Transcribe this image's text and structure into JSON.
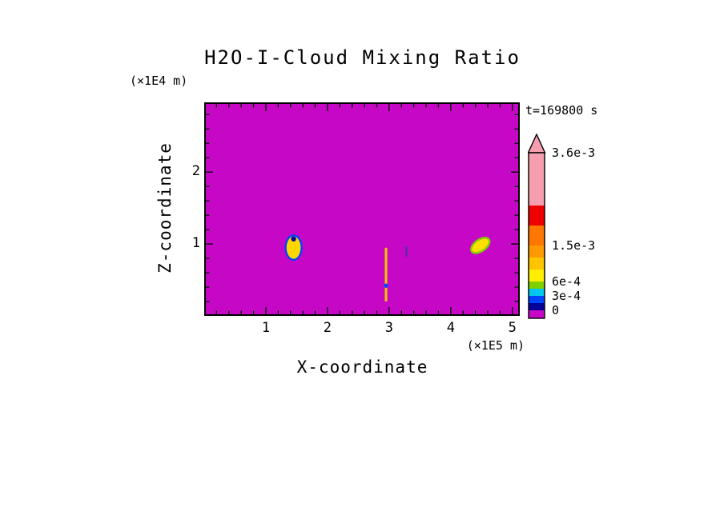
{
  "chart_data": {
    "type": "heatmap",
    "title": "H2O-I-Cloud Mixing Ratio",
    "timestamp_label": "t=169800 s",
    "xlabel": "X-coordinate",
    "x_units_label": "(×1E5 m)",
    "ylabel": "Z-coordinate",
    "y_units_label": "(×1E4 m)",
    "xlim": [
      0,
      5.12
    ],
    "ylim": [
      0,
      2.97
    ],
    "x_major_ticks": [
      1,
      2,
      3,
      4,
      5
    ],
    "y_major_ticks": [
      1,
      2
    ],
    "x_minor_step": 0.2,
    "y_minor_step": 0.2,
    "grid": false,
    "legend_position": "right-colorbar",
    "field": {
      "background_value": 0,
      "background_color": "#C608C6"
    },
    "colorbar": {
      "arrow_color": "#F59EB0",
      "outline_color": "#000000",
      "tick_labels": [
        "3.6e-3",
        "1.5e-3",
        "6e-4",
        "3e-4",
        "0"
      ],
      "segments_bottom_to_top": [
        {
          "color": "#C608C6",
          "height": 10,
          "label_at_top": "0"
        },
        {
          "color": "#000099",
          "height": 9
        },
        {
          "color": "#0044FF",
          "height": 9,
          "label_at_top": "3e-4"
        },
        {
          "color": "#00C8F0",
          "height": 9
        },
        {
          "color": "#7FD000",
          "height": 9,
          "label_at_top": "6e-4"
        },
        {
          "color": "#FFEE00",
          "height": 15
        },
        {
          "color": "#FFC400",
          "height": 15
        },
        {
          "color": "#FF9900",
          "height": 15,
          "label_at_top": "1.5e-3"
        },
        {
          "color": "#FF7700",
          "height": 25
        },
        {
          "color": "#EE0000",
          "height": 25
        },
        {
          "color": "#F59EB0",
          "height": 66,
          "label_at_top": "3.6e-3"
        }
      ]
    },
    "features": [
      {
        "name": "cloud-blob-left",
        "kind": "blob",
        "cx": 1.45,
        "cz": 0.95,
        "rx": 0.13,
        "rz": 0.17,
        "rotate_deg": 0,
        "fill": "#FFD700",
        "stroke": "#0044FF",
        "core": {
          "color": "#000099",
          "dz": 0.12,
          "r": 0.035
        }
      },
      {
        "name": "cloud-streak-center",
        "kind": "streak",
        "x": 2.95,
        "z_bottom": 0.2,
        "z_top": 0.95,
        "width": 0.04,
        "color": "#FFC400",
        "dot": {
          "color": "#0044FF",
          "z": 0.42,
          "r": 0.03
        }
      },
      {
        "name": "cloud-dash-center-right",
        "kind": "streak",
        "x": 3.28,
        "z_bottom": 0.82,
        "z_top": 0.97,
        "width": 0.025,
        "color": "#46329B"
      },
      {
        "name": "cloud-blob-right",
        "kind": "blob",
        "cx": 4.48,
        "cz": 0.98,
        "rx": 0.17,
        "rz": 0.08,
        "rotate_deg": -35,
        "fill": "#FFE000",
        "stroke": "#7FD000"
      }
    ]
  }
}
